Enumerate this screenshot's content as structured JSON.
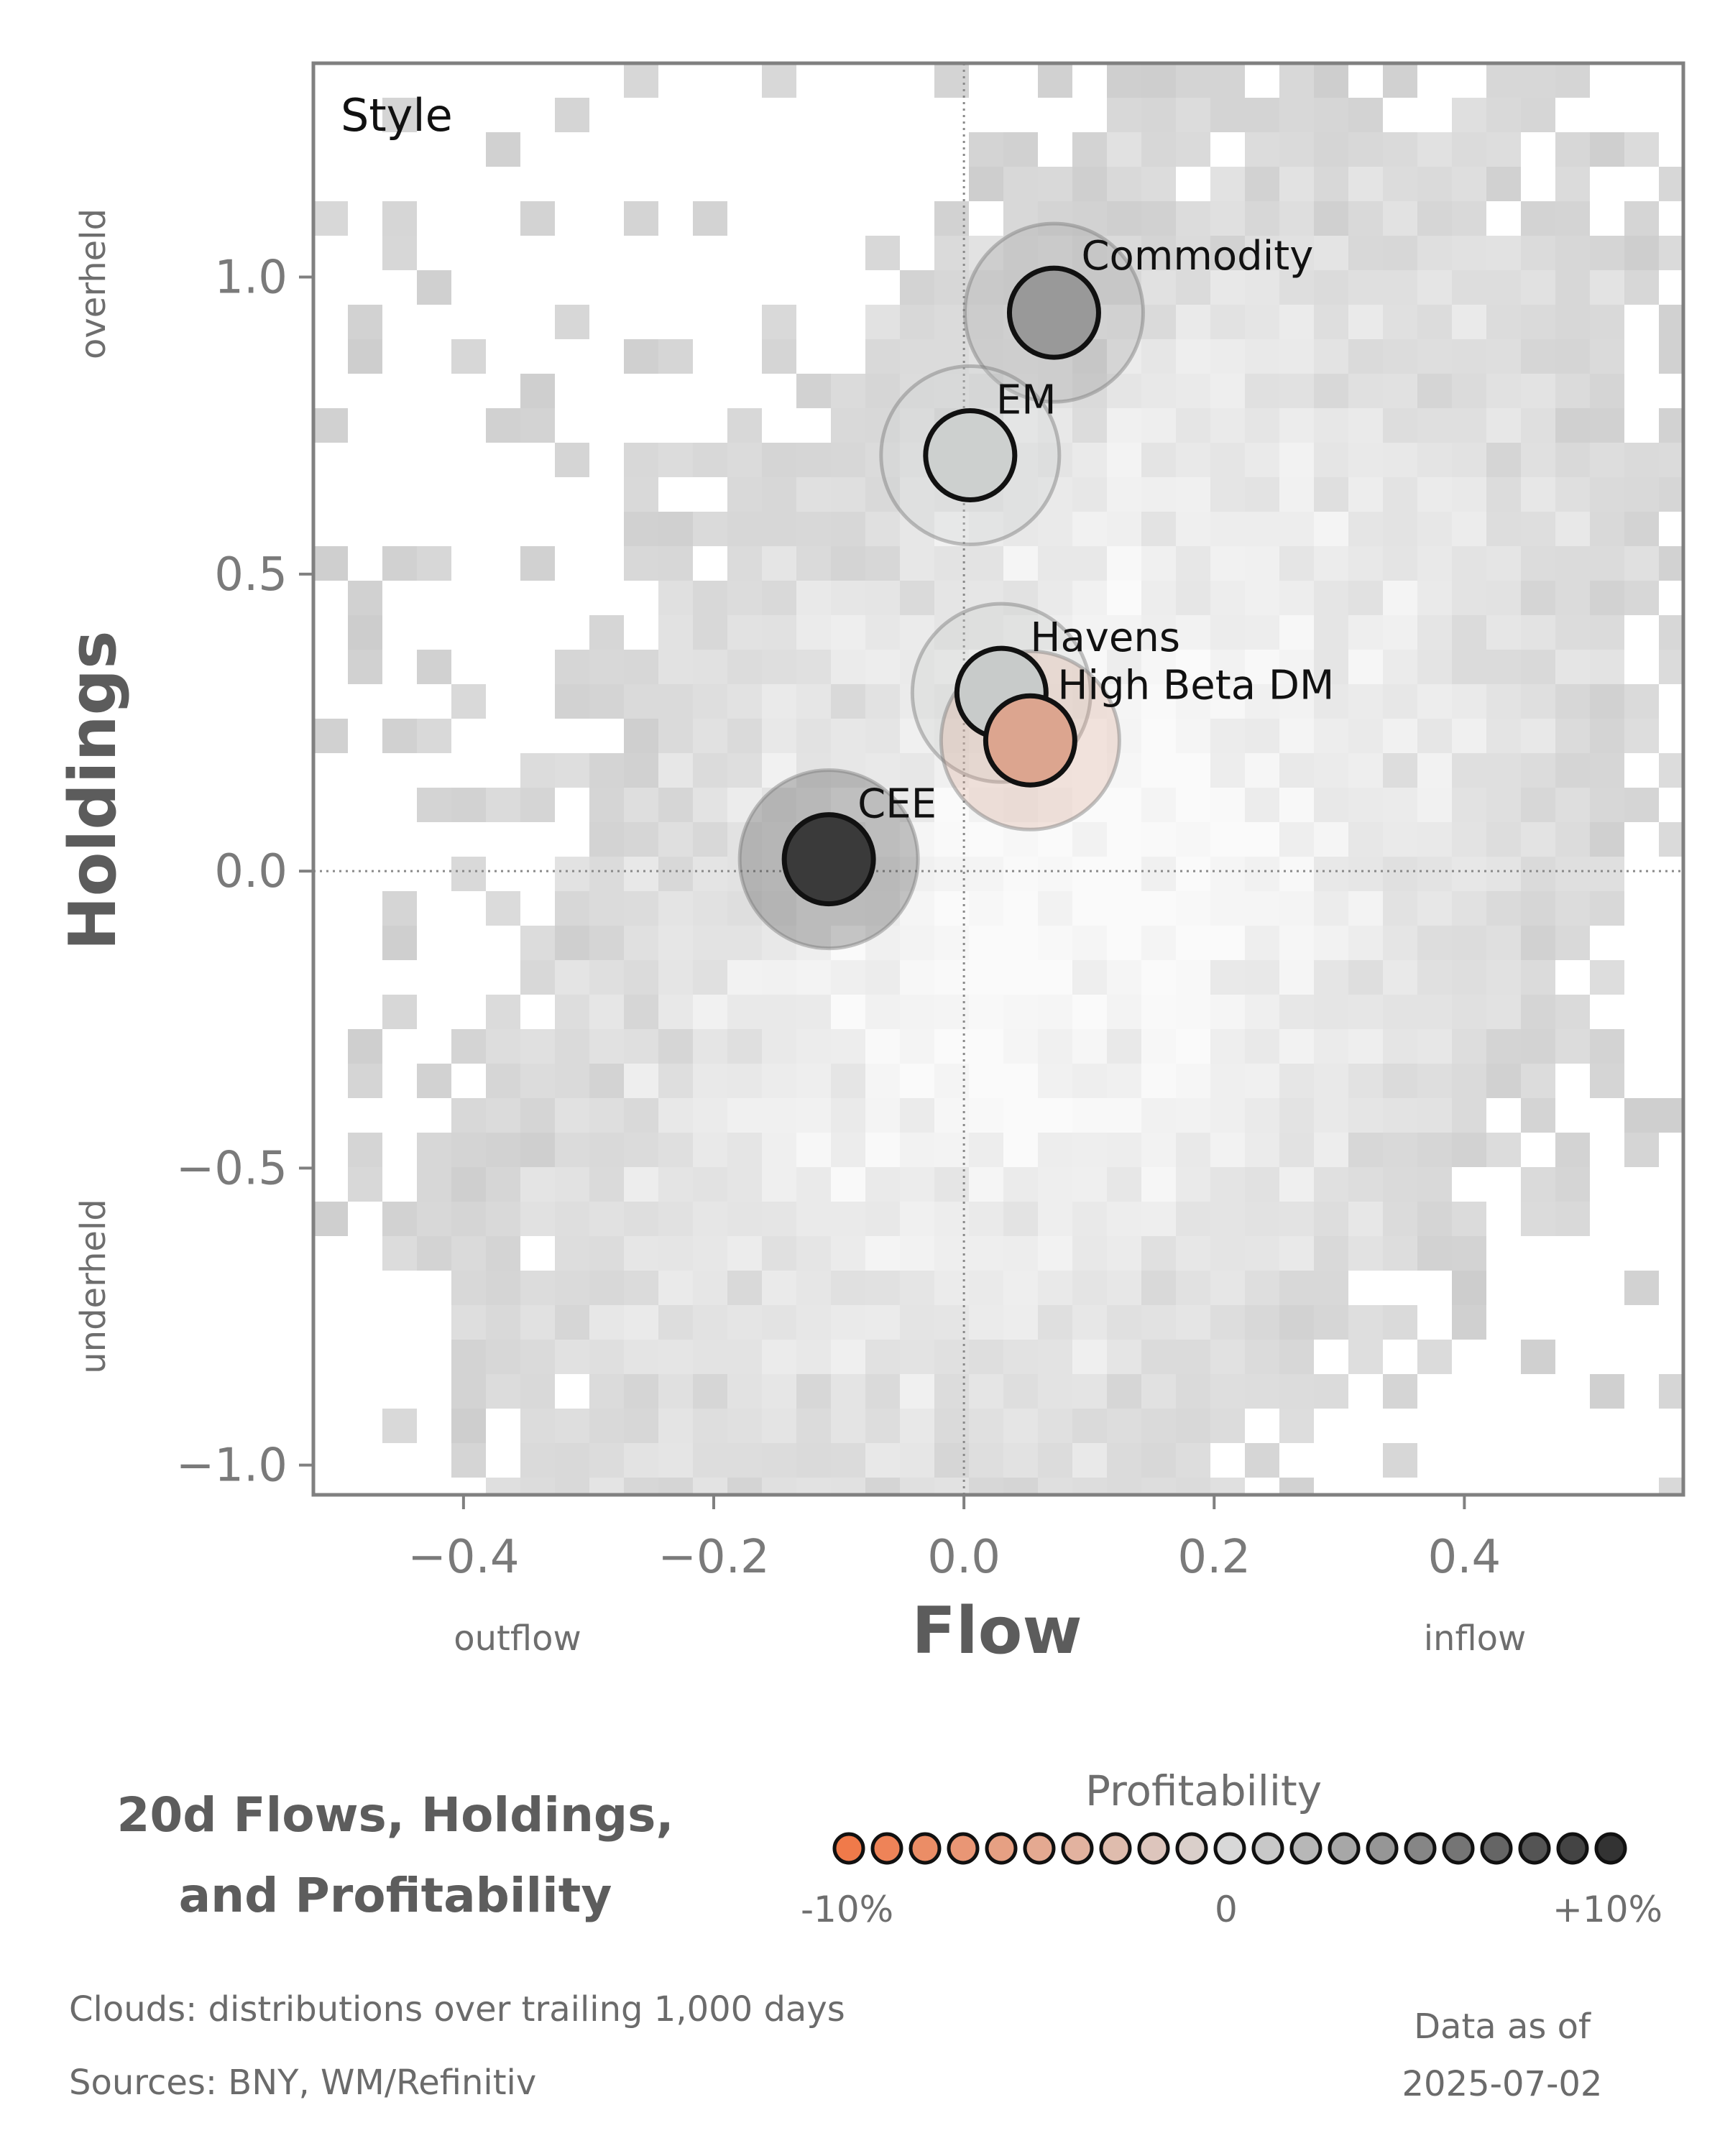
{
  "panel_label": "Style",
  "title": {
    "line1": "20d Flows, Holdings,",
    "line2": "and Profitability"
  },
  "legend": {
    "title": "Profitability",
    "min_label": "-10%",
    "mid_label": "0",
    "max_label": "+10%",
    "swatch_count": 21,
    "low_color": "#f07a4a",
    "mid_color": "#d8d8d8",
    "high_color": "#333333"
  },
  "footer": {
    "clouds": "Clouds:  distributions over trailing 1,000 days",
    "sources": "Sources:  BNY, WM/Refinitiv",
    "data_as_of_label": "Data as of",
    "data_as_of_date": "2025-07-02"
  },
  "chart_data": {
    "type": "scatter",
    "xlabel": "Flow",
    "ylabel": "Holdings",
    "x_low_label": "outflow",
    "x_high_label": "inflow",
    "y_high_label": "overheld",
    "y_low_label": "underheld",
    "xlim": [
      -0.52,
      0.575
    ],
    "ylim": [
      -1.05,
      1.36
    ],
    "xticks": [
      -0.4,
      -0.2,
      0.0,
      0.2,
      0.4
    ],
    "xtick_labels": [
      "−0.4",
      "−0.2",
      "0.0",
      "0.2",
      "0.4"
    ],
    "yticks": [
      1.0,
      0.5,
      0.0,
      -0.5,
      -1.0
    ],
    "ytick_labels": [
      "1.0",
      "0.5",
      "0.0",
      "−0.5",
      "−1.0"
    ],
    "reference_lines": {
      "x": 0,
      "y": 0,
      "style": "dotted"
    },
    "background": "heatmap of flow/holdings distribution (gray cloud)",
    "points": [
      {
        "name": "Commodity",
        "x": 0.072,
        "y": 0.94,
        "profitability": 0.055,
        "color": "#999999"
      },
      {
        "name": "EM",
        "x": 0.005,
        "y": 0.7,
        "profitability": 0.0,
        "color": "#cdd0cf"
      },
      {
        "name": "Havens",
        "x": 0.03,
        "y": 0.3,
        "profitability": 0.005,
        "color": "#c8cbca"
      },
      {
        "name": "High Beta DM",
        "x": 0.053,
        "y": 0.22,
        "profitability": -0.04,
        "color": "#dca58f"
      },
      {
        "name": "CEE",
        "x": -0.108,
        "y": 0.02,
        "profitability": 0.1,
        "color": "#3a3a3a"
      }
    ]
  }
}
